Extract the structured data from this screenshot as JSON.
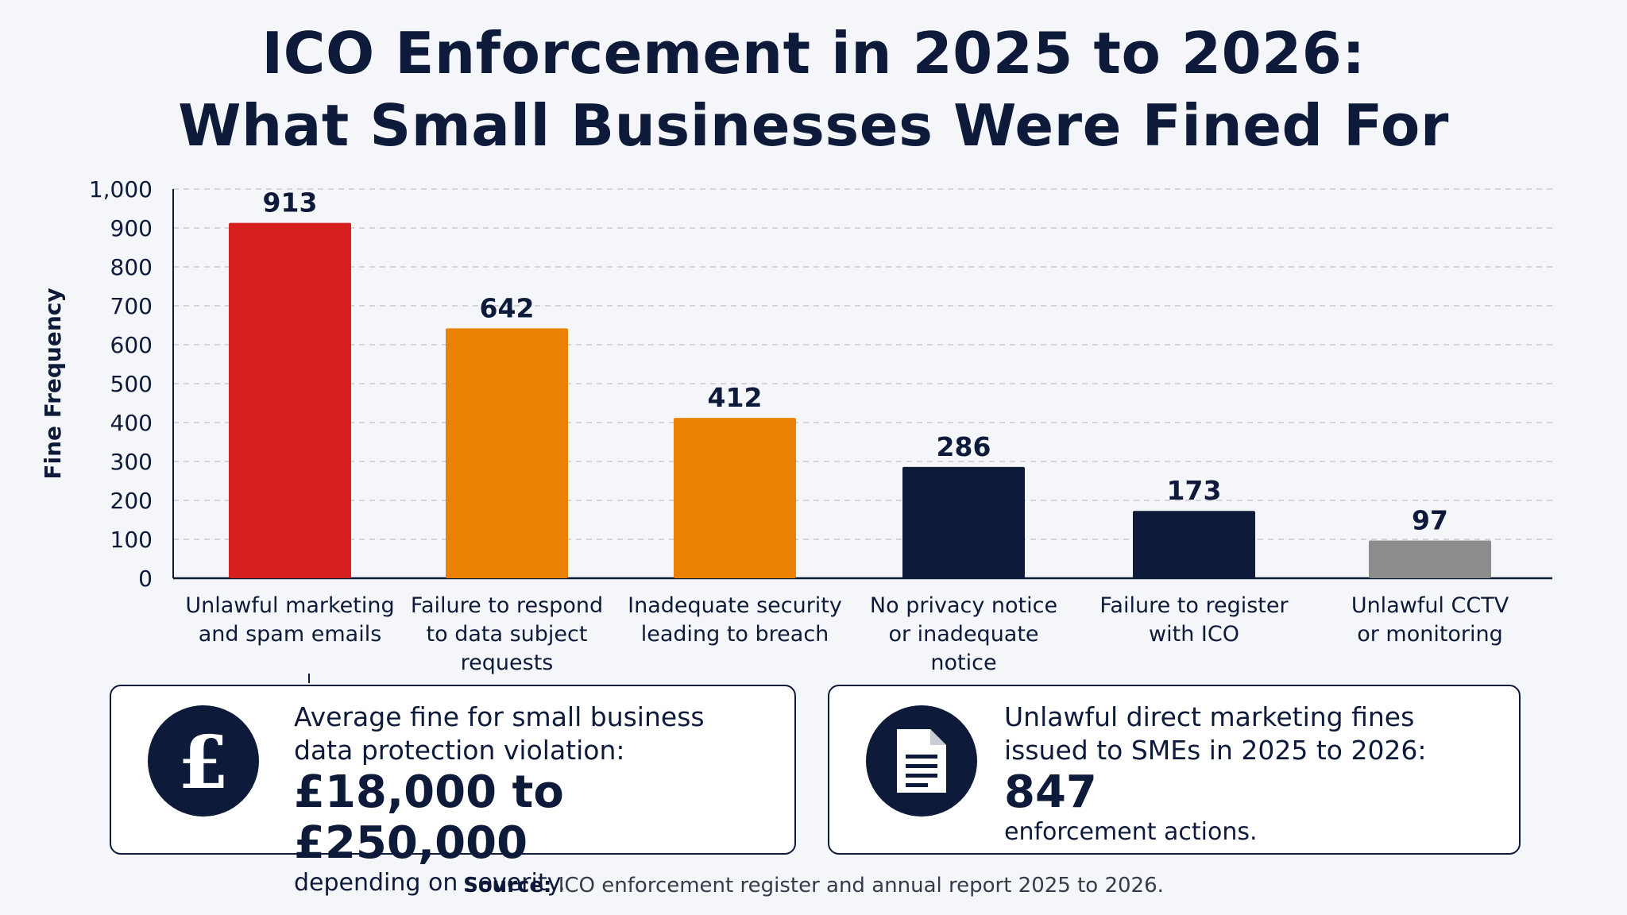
{
  "title": {
    "line1": "ICO Enforcement in 2025 to 2026:",
    "line2": "What Small Businesses Were Fined For"
  },
  "chart_data": {
    "type": "bar",
    "title": "ICO Enforcement in 2025 to 2026: What Small Businesses Were Fined For",
    "xlabel": "",
    "ylabel": "Fine Frequency",
    "ylim": [
      0,
      1000
    ],
    "yticks": [
      0,
      100,
      200,
      300,
      400,
      500,
      600,
      700,
      800,
      900,
      1000
    ],
    "ytick_labels": [
      "0",
      "100",
      "200",
      "300",
      "400",
      "500",
      "600",
      "700",
      "800",
      "900",
      "1,000"
    ],
    "grid": true,
    "categories": [
      [
        "Unlawful marketing",
        "and spam emails"
      ],
      [
        "Failure to respond",
        "to data subject",
        "requests"
      ],
      [
        "Inadequate security",
        "leading to breach"
      ],
      [
        "No privacy notice",
        "or inadequate",
        "notice"
      ],
      [
        "Failure to register",
        "with ICO"
      ],
      [
        "Unlawful CCTV",
        "or monitoring"
      ]
    ],
    "values": [
      913,
      642,
      412,
      286,
      173,
      97
    ],
    "colors": [
      "#d6201f",
      "#ec8205",
      "#ec8205",
      "#0d1a3a",
      "#0d1a3a",
      "#8c8c8c"
    ]
  },
  "cards": {
    "left": {
      "icon": "pound-sterling-icon",
      "caption_line1": "Average fine for small business",
      "caption_line2": "data protection violation:",
      "big": "£18,000 to £250,000",
      "foot": "depending on severity."
    },
    "right": {
      "icon": "document-icon",
      "caption_line1": "Unlawful direct marketing fines",
      "caption_line2": "issued to SMEs in 2025 to 2026:",
      "big": "847",
      "foot": "enforcement actions."
    }
  },
  "source": {
    "label": "Source:",
    "text": " ICO enforcement register and annual report 2025 to 2026."
  },
  "colors": {
    "navy": "#0d1a3a",
    "background": "#f5f6f9",
    "grid": "#c7cad1"
  }
}
